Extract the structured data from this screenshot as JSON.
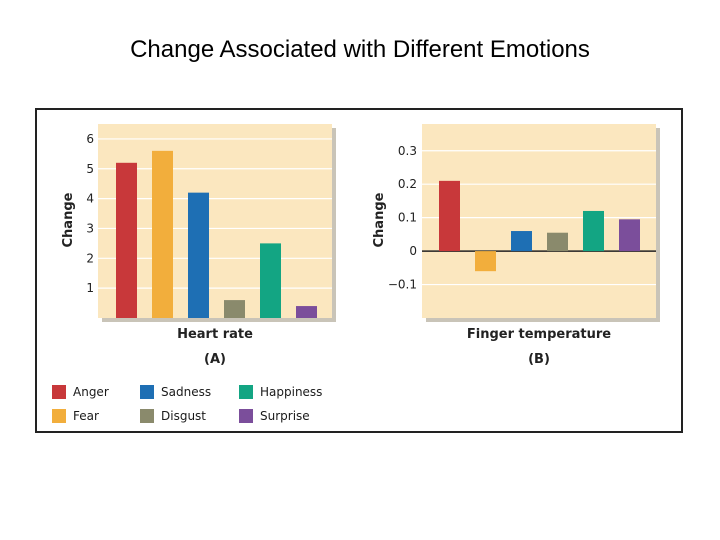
{
  "title": "Change Associated with Different Emotions",
  "colors": {
    "anger": "#c8383a",
    "fear": "#f2ae3c",
    "sadness": "#1e6fb4",
    "disgust": "#8a8a6c",
    "happiness": "#13a583",
    "surprise": "#7b4e9b",
    "panel_bg": "#fbe7bf"
  },
  "legend": [
    {
      "label": "Anger",
      "color": "#c8383a"
    },
    {
      "label": "Fear",
      "color": "#f2ae3c"
    },
    {
      "label": "Sadness",
      "color": "#1e6fb4"
    },
    {
      "label": "Disgust",
      "color": "#8a8a6c"
    },
    {
      "label": "Happiness",
      "color": "#13a583"
    },
    {
      "label": "Surprise",
      "color": "#7b4e9b"
    }
  ],
  "chart_data": [
    {
      "type": "bar",
      "panel_label": "(A)",
      "xlabel": "Heart rate",
      "ylabel": "Change",
      "categories": [
        "Anger",
        "Fear",
        "Sadness",
        "Disgust",
        "Happiness",
        "Surprise"
      ],
      "values": [
        5.2,
        5.6,
        4.2,
        0.6,
        2.5,
        0.4
      ],
      "colors": [
        "#c8383a",
        "#f2ae3c",
        "#1e6fb4",
        "#8a8a6c",
        "#13a583",
        "#7b4e9b"
      ],
      "yticks": [
        1,
        2,
        3,
        4,
        5,
        6
      ],
      "ytick_labels": [
        "1",
        "2",
        "3",
        "4",
        "5",
        "6"
      ],
      "ylim": [
        0,
        6.5
      ],
      "grid": true
    },
    {
      "type": "bar",
      "panel_label": "(B)",
      "xlabel": "Finger temperature",
      "ylabel": "Change",
      "categories": [
        "Anger",
        "Fear",
        "Sadness",
        "Disgust",
        "Happiness",
        "Surprise"
      ],
      "values": [
        0.21,
        -0.06,
        0.06,
        0.055,
        0.12,
        0.095
      ],
      "colors": [
        "#c8383a",
        "#f2ae3c",
        "#1e6fb4",
        "#8a8a6c",
        "#13a583",
        "#7b4e9b"
      ],
      "yticks": [
        -0.1,
        0,
        0.1,
        0.2,
        0.3
      ],
      "ytick_labels": [
        "−0.1",
        "0",
        "0.1",
        "0.2",
        "0.3"
      ],
      "ylim": [
        -0.2,
        0.38
      ],
      "grid": true
    }
  ]
}
